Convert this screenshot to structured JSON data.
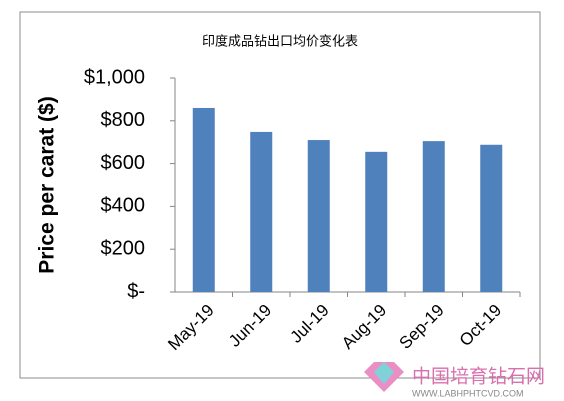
{
  "chart_data": {
    "type": "bar",
    "title": "印度成品钻出口均价变化表",
    "y_label": "Price per carat ($)",
    "categories": [
      "May-19",
      "Jun-19",
      "Jul-19",
      "Aug-19",
      "Sep-19",
      "Oct-19"
    ],
    "values": [
      860,
      748,
      710,
      655,
      705,
      688
    ],
    "color": "#4f81bd",
    "ylim": [
      0,
      1000
    ],
    "yticks": [
      {
        "value": 0,
        "label": "$-"
      },
      {
        "value": 200,
        "label": "$200"
      },
      {
        "value": 400,
        "label": "$400"
      },
      {
        "value": 600,
        "label": "$600"
      },
      {
        "value": 800,
        "label": "$800"
      },
      {
        "value": 1000,
        "label": "$1,000"
      }
    ],
    "grid": false
  },
  "watermark": {
    "name": "中国培育钻石网",
    "url": "WWW.LABHPHTCVD.COM"
  }
}
